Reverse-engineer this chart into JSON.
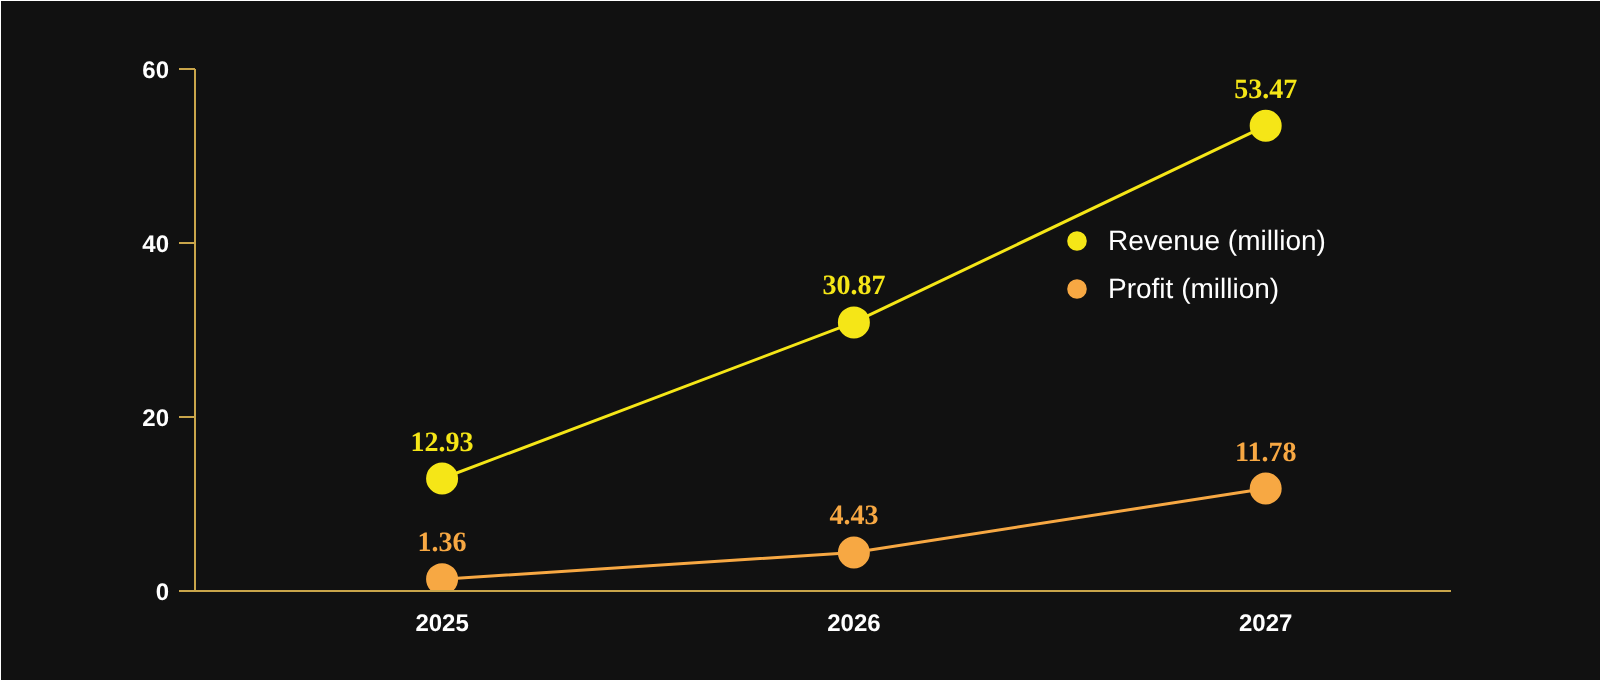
{
  "chart_data": {
    "type": "line",
    "categories": [
      "2025",
      "2026",
      "2027"
    ],
    "series": [
      {
        "name": "Revenue (million)",
        "color": "#f5e617",
        "values": [
          12.93,
          30.87,
          53.47
        ]
      },
      {
        "name": "Profit (million)",
        "color": "#f7a843",
        "values": [
          1.36,
          4.43,
          11.78
        ]
      }
    ],
    "ylim": [
      0,
      60
    ],
    "yticks": [
      0,
      20,
      40,
      60
    ],
    "grid": false,
    "legend": "right",
    "marker": "circle",
    "line_style": "solid",
    "data_labels": true
  }
}
